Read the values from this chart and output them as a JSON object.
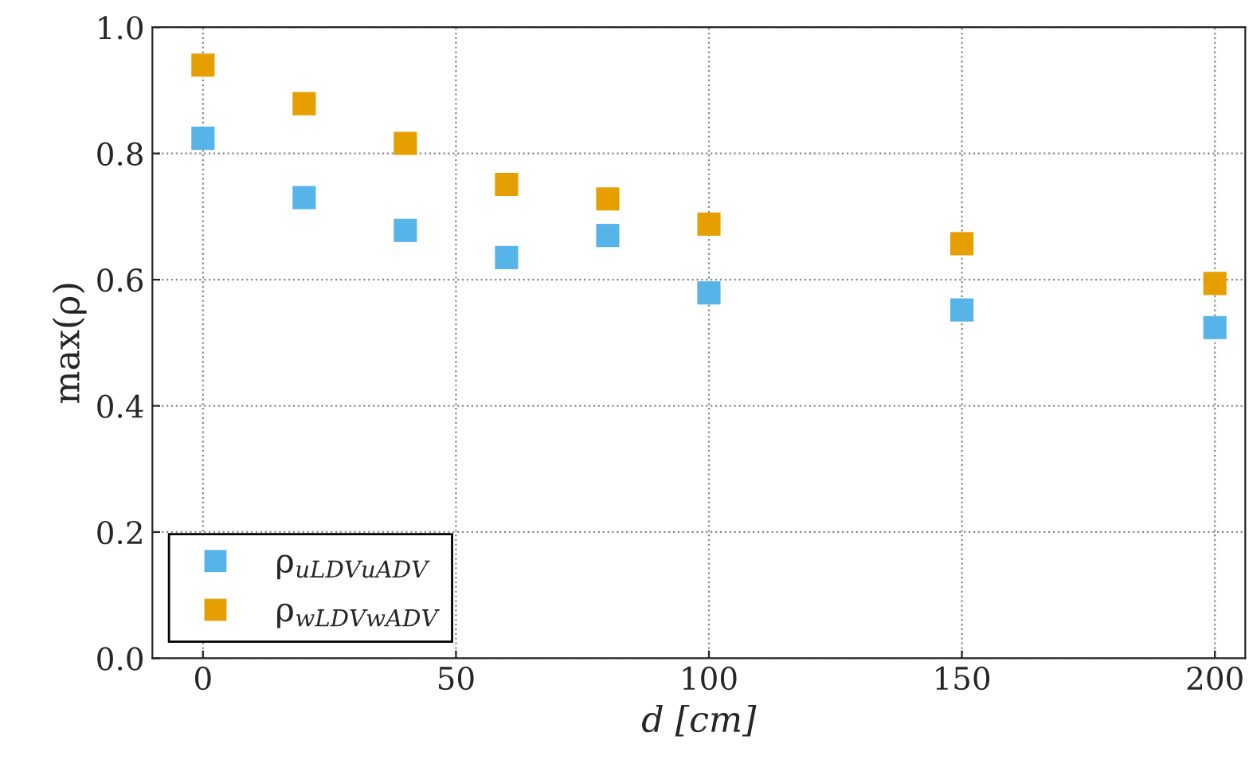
{
  "chart_data": {
    "type": "scatter",
    "xlabel": "d [cm]",
    "ylabel": "max(ρ)",
    "x": [
      0,
      20,
      40,
      60,
      80,
      100,
      150,
      200
    ],
    "series": [
      {
        "name": "ρ$_{uLDVuADV}$",
        "color": "#56b4e9",
        "values": [
          0.824,
          0.73,
          0.678,
          0.635,
          0.67,
          0.579,
          0.552,
          0.524
        ]
      },
      {
        "name": "ρ$_{wLDVwADV}$",
        "color": "#e69f00",
        "values": [
          0.94,
          0.879,
          0.816,
          0.751,
          0.728,
          0.688,
          0.657,
          0.594
        ]
      }
    ],
    "xlim": [
      -10,
      206
    ],
    "xticks": [
      0,
      50,
      100,
      150,
      200
    ],
    "ylim": [
      0,
      1
    ],
    "yticks": [
      {
        "value": 0,
        "label": "0.0"
      },
      {
        "value": 0.2,
        "label": "0.2"
      },
      {
        "value": 0.4,
        "label": "0.4"
      },
      {
        "value": 0.6,
        "label": "0.6"
      },
      {
        "value": 0.8,
        "label": "0.8"
      },
      {
        "value": 1,
        "label": "1.0"
      }
    ],
    "grid": true,
    "legend": "bottom left",
    "marker": "square"
  }
}
